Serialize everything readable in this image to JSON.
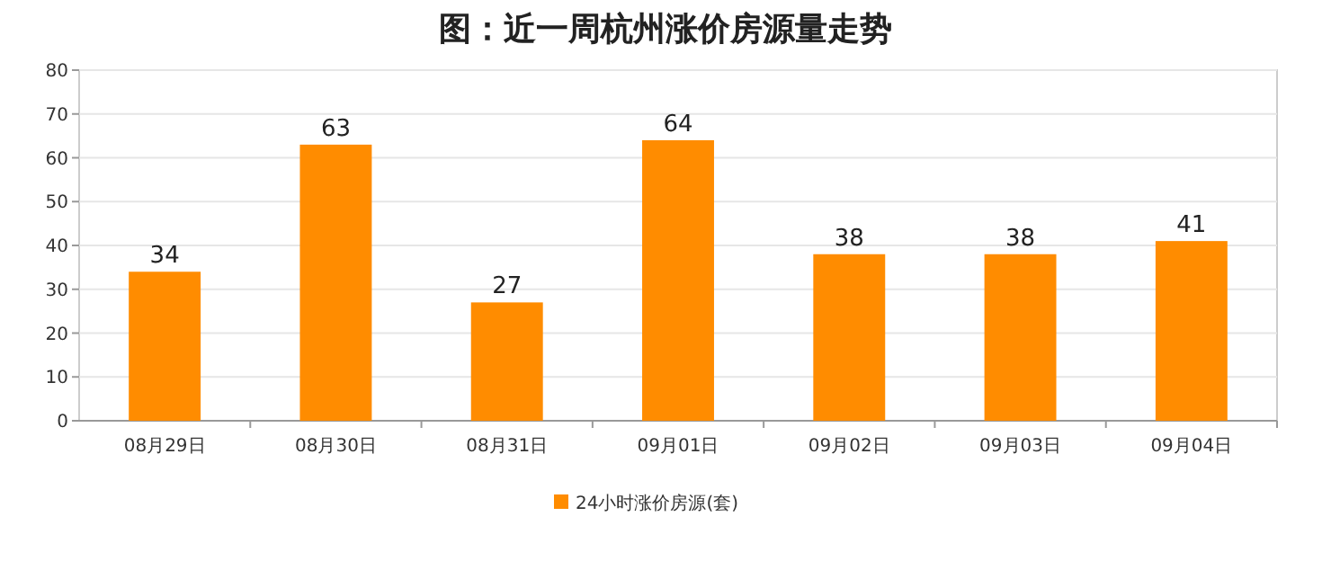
{
  "chart_data": {
    "type": "bar",
    "title": "图：近一周杭州涨价房源量走势",
    "categories": [
      "08月29日",
      "08月30日",
      "08月31日",
      "09月01日",
      "09月02日",
      "09月03日",
      "09月04日"
    ],
    "series": [
      {
        "name": "24小时涨价房源(套)",
        "color": "#ff8c00",
        "values": [
          34,
          63,
          27,
          64,
          38,
          38,
          41
        ]
      }
    ],
    "ylim": [
      0,
      80
    ],
    "yticks": [
      0,
      10,
      20,
      30,
      40,
      50,
      60,
      70,
      80
    ],
    "grid": "y",
    "data_labels": true,
    "legend": "bottom"
  }
}
